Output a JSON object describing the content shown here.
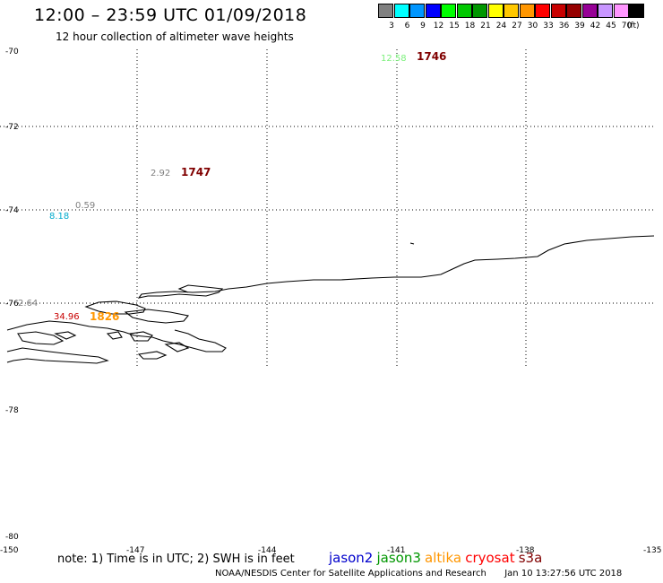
{
  "header": {
    "title": "12:00 – 23:59 UTC 01/09/2018",
    "subtitle": "12 hour collection of altimeter wave heights"
  },
  "legend": {
    "unit": "(ft)",
    "items": [
      {
        "label": "3",
        "color": "#808080"
      },
      {
        "label": "6",
        "color": "#00ffff"
      },
      {
        "label": "9",
        "color": "#0096ff"
      },
      {
        "label": "12",
        "color": "#0000ff"
      },
      {
        "label": "15",
        "color": "#00ff00"
      },
      {
        "label": "18",
        "color": "#00c800"
      },
      {
        "label": "21",
        "color": "#009600"
      },
      {
        "label": "24",
        "color": "#ffff00"
      },
      {
        "label": "27",
        "color": "#ffc800"
      },
      {
        "label": "30",
        "color": "#ff9600"
      },
      {
        "label": "33",
        "color": "#ff0000"
      },
      {
        "label": "36",
        "color": "#c80000"
      },
      {
        "label": "39",
        "color": "#960000"
      },
      {
        "label": "42",
        "color": "#960096"
      },
      {
        "label": "45",
        "color": "#c896ff"
      },
      {
        "label": "70",
        "color": "#ff96ff"
      },
      {
        "label": "",
        "color": "#000000"
      }
    ]
  },
  "map": {
    "lat_labels": [
      "-70",
      "-72",
      "-74",
      "-76",
      "-78",
      "-80"
    ],
    "lon_labels": [
      "-150",
      "-147",
      "-144",
      "-141",
      "-138",
      "-135"
    ],
    "wave_heights": [
      {
        "value": "12.58",
        "color": "#7cf07c"
      },
      {
        "value": "2.92",
        "color": "#808080"
      },
      {
        "value": "0.59",
        "color": "#808080"
      },
      {
        "value": "8.18",
        "color": "#00aacc"
      },
      {
        "value": "2.64",
        "color": "#808080"
      },
      {
        "value": "34.96",
        "color": "#c80000"
      }
    ],
    "track_ids": [
      {
        "value": "1746",
        "color": "#800000"
      },
      {
        "value": "1747",
        "color": "#800000"
      },
      {
        "value": "1826",
        "color": "#ff9600"
      }
    ]
  },
  "footer": {
    "note": "note: 1) Time is in UTC; 2) SWH is in feet",
    "satellites": [
      {
        "name": "jason2",
        "color": "#0000cc"
      },
      {
        "name": "jason3",
        "color": "#009600"
      },
      {
        "name": "altika",
        "color": "#ff9600"
      },
      {
        "name": "cryosat",
        "color": "#ff0000"
      },
      {
        "name": "s3a",
        "color": "#800000"
      }
    ],
    "credit": "NOAA/NESDIS Center for Satellite Applications and Research",
    "timestamp": "Jan 10 13:27:56 UTC 2018"
  }
}
